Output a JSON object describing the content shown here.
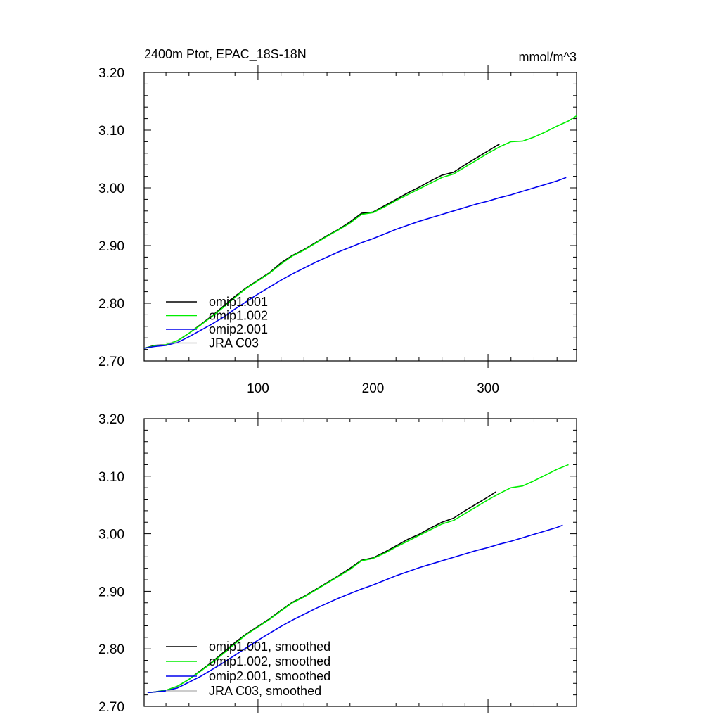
{
  "chart_data": [
    {
      "type": "line",
      "title": "2400m Ptot, EPAC_18S-18N",
      "units": "mmol/m^3",
      "xlim": [
        1,
        377
      ],
      "ylim": [
        2.7,
        3.2
      ],
      "xticks": [
        100,
        200,
        300
      ],
      "xtick_labels": [
        "100",
        "200",
        "300"
      ],
      "yticks": [
        2.7,
        2.8,
        2.9,
        3.0,
        3.1,
        3.2
      ],
      "ytick_labels": [
        "2.70",
        "2.80",
        "2.90",
        "3.00",
        "3.10",
        "3.20"
      ],
      "legend_position": "bottom-left",
      "series": [
        {
          "name": "omip1.001",
          "color": "#000000",
          "x": [
            1,
            10,
            20,
            30,
            40,
            50,
            60,
            70,
            80,
            90,
            100,
            110,
            120,
            130,
            140,
            150,
            160,
            170,
            180,
            190,
            200,
            210,
            220,
            230,
            240,
            250,
            260,
            270,
            280,
            290,
            300,
            310
          ],
          "y": [
            2.722,
            2.727,
            2.728,
            2.735,
            2.748,
            2.763,
            2.778,
            2.795,
            2.812,
            2.827,
            2.84,
            2.853,
            2.87,
            2.883,
            2.893,
            2.905,
            2.917,
            2.928,
            2.941,
            2.956,
            2.958,
            2.969,
            2.98,
            2.991,
            3.001,
            3.012,
            3.022,
            3.027,
            3.04,
            3.052,
            3.064,
            3.076
          ]
        },
        {
          "name": "omip1.002",
          "color": "#00ee00",
          "x": [
            1,
            10,
            20,
            30,
            40,
            50,
            60,
            70,
            80,
            90,
            100,
            110,
            120,
            130,
            140,
            150,
            160,
            170,
            180,
            190,
            200,
            210,
            220,
            230,
            240,
            250,
            260,
            270,
            280,
            290,
            300,
            310,
            320,
            330,
            340,
            350,
            360,
            370,
            377
          ],
          "y": [
            2.722,
            2.726,
            2.728,
            2.735,
            2.748,
            2.762,
            2.777,
            2.793,
            2.81,
            2.826,
            2.839,
            2.852,
            2.868,
            2.882,
            2.892,
            2.904,
            2.916,
            2.927,
            2.939,
            2.954,
            2.957,
            2.967,
            2.978,
            2.988,
            2.998,
            3.008,
            3.018,
            3.024,
            3.036,
            3.048,
            3.06,
            3.071,
            3.08,
            3.081,
            3.088,
            3.097,
            3.107,
            3.116,
            3.125
          ]
        },
        {
          "name": "omip2.001",
          "color": "#0000ee",
          "x": [
            1,
            10,
            20,
            30,
            40,
            50,
            60,
            70,
            80,
            90,
            100,
            110,
            120,
            130,
            140,
            150,
            160,
            170,
            180,
            190,
            200,
            210,
            220,
            230,
            240,
            250,
            260,
            270,
            280,
            290,
            300,
            310,
            320,
            330,
            340,
            350,
            360,
            368
          ],
          "y": [
            2.722,
            2.725,
            2.727,
            2.732,
            2.742,
            2.753,
            2.764,
            2.776,
            2.79,
            2.803,
            2.816,
            2.828,
            2.84,
            2.851,
            2.861,
            2.871,
            2.88,
            2.889,
            2.897,
            2.905,
            2.912,
            2.92,
            2.928,
            2.935,
            2.942,
            2.948,
            2.954,
            2.96,
            2.966,
            2.972,
            2.977,
            2.983,
            2.988,
            2.994,
            3.0,
            3.006,
            3.012,
            3.018
          ]
        },
        {
          "name": "JRA C03",
          "color": "#bbbbbb",
          "x": [],
          "y": []
        }
      ]
    },
    {
      "type": "line",
      "title": "",
      "units": "",
      "xlim": [
        1,
        377
      ],
      "ylim": [
        2.7,
        3.2
      ],
      "xticks": [
        100,
        200,
        300
      ],
      "xtick_labels": [],
      "yticks": [
        2.7,
        2.8,
        2.9,
        3.0,
        3.1,
        3.2
      ],
      "ytick_labels": [
        "2.70",
        "2.80",
        "2.90",
        "3.00",
        "3.10",
        "3.20"
      ],
      "legend_position": "bottom-left",
      "series": [
        {
          "name": "omip1.001, smoothed",
          "color": "#000000",
          "x": [
            4,
            10,
            20,
            30,
            40,
            50,
            60,
            70,
            80,
            90,
            100,
            110,
            120,
            130,
            140,
            150,
            160,
            170,
            180,
            190,
            200,
            210,
            220,
            230,
            240,
            250,
            260,
            270,
            280,
            290,
            300,
            307
          ],
          "y": [
            2.724,
            2.725,
            2.728,
            2.735,
            2.747,
            2.762,
            2.777,
            2.794,
            2.811,
            2.826,
            2.839,
            2.852,
            2.867,
            2.881,
            2.891,
            2.903,
            2.915,
            2.927,
            2.94,
            2.954,
            2.958,
            2.968,
            2.979,
            2.99,
            2.999,
            3.01,
            3.02,
            3.027,
            3.04,
            3.052,
            3.064,
            3.073
          ]
        },
        {
          "name": "omip1.002, smoothed",
          "color": "#00ee00",
          "x": [
            4,
            10,
            20,
            30,
            40,
            50,
            60,
            70,
            80,
            90,
            100,
            110,
            120,
            130,
            140,
            150,
            160,
            170,
            180,
            190,
            200,
            210,
            220,
            230,
            240,
            250,
            260,
            270,
            280,
            290,
            300,
            310,
            320,
            330,
            340,
            350,
            360,
            370
          ],
          "y": [
            2.724,
            2.725,
            2.728,
            2.735,
            2.747,
            2.761,
            2.776,
            2.792,
            2.809,
            2.825,
            2.838,
            2.851,
            2.866,
            2.88,
            2.89,
            2.902,
            2.914,
            2.926,
            2.938,
            2.953,
            2.957,
            2.966,
            2.977,
            2.987,
            2.997,
            3.007,
            3.017,
            3.023,
            3.035,
            3.047,
            3.059,
            3.07,
            3.08,
            3.083,
            3.092,
            3.102,
            3.112,
            3.12
          ]
        },
        {
          "name": "omip2.001, smoothed",
          "color": "#0000ee",
          "x": [
            4,
            10,
            20,
            30,
            40,
            50,
            60,
            70,
            80,
            90,
            100,
            110,
            120,
            130,
            140,
            150,
            160,
            170,
            180,
            190,
            200,
            210,
            220,
            230,
            240,
            250,
            260,
            270,
            280,
            290,
            300,
            310,
            320,
            330,
            340,
            350,
            360,
            365
          ],
          "y": [
            2.724,
            2.725,
            2.727,
            2.732,
            2.742,
            2.752,
            2.764,
            2.776,
            2.789,
            2.802,
            2.815,
            2.827,
            2.839,
            2.85,
            2.86,
            2.87,
            2.879,
            2.888,
            2.896,
            2.904,
            2.911,
            2.919,
            2.927,
            2.934,
            2.941,
            2.947,
            2.953,
            2.959,
            2.965,
            2.971,
            2.976,
            2.982,
            2.987,
            2.993,
            2.999,
            3.005,
            3.011,
            3.015
          ]
        },
        {
          "name": "JRA C03, smoothed",
          "color": "#bbbbbb",
          "x": [],
          "y": []
        }
      ]
    }
  ]
}
